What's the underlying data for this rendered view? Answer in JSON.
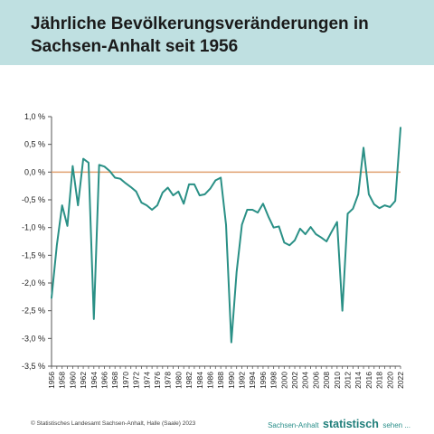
{
  "header": {
    "title": "Jährliche Bevölkerungsveränderungen in Sachsen-Anhalt seit 1956"
  },
  "footer": {
    "source": "© Statistisches Landesamt Sachsen-Anhalt, Halle (Saale) 2023",
    "brand_prefix": "Sachsen-Anhalt",
    "brand_main": "statistisch",
    "brand_suffix": "sehen ..."
  },
  "colors": {
    "header_bg": "#bfe0e1",
    "line": "#2a9086",
    "zero_line": "#e0a070",
    "axis": "#555555"
  },
  "chart_data": {
    "type": "line",
    "title": "Jährliche Bevölkerungsveränderungen in Sachsen-Anhalt seit 1956",
    "xlabel": "",
    "ylabel": "",
    "ylim": [
      -3.5,
      1.0
    ],
    "y_ticks": [
      1.0,
      0.5,
      0.0,
      -0.5,
      -1.0,
      -1.5,
      -2.0,
      -2.5,
      -3.0,
      -3.5
    ],
    "y_tick_labels": [
      "1,0 %",
      "0,5 %",
      "0,0 %",
      "-0,5 %",
      "-1,0 %",
      "-1,5 %",
      "-2,0 %",
      "-2,5 %",
      "-3,0 %",
      "-3,5 %"
    ],
    "x_tick_labels": [
      "1956",
      "1958",
      "1960",
      "1962",
      "1964",
      "1966",
      "1968",
      "1970",
      "1972",
      "1974",
      "1976",
      "1978",
      "1980",
      "1982",
      "1984",
      "1986",
      "1988",
      "1990",
      "1992",
      "1994",
      "1996",
      "1998",
      "2000",
      "2002",
      "2004",
      "2006",
      "2008",
      "2010",
      "2012",
      "2014",
      "2016",
      "2018",
      "2020",
      "2022"
    ],
    "reference_line": 0.0,
    "grid": false,
    "x": [
      1956,
      1957,
      1958,
      1959,
      1960,
      1961,
      1962,
      1963,
      1964,
      1965,
      1966,
      1967,
      1968,
      1969,
      1970,
      1971,
      1972,
      1973,
      1974,
      1975,
      1976,
      1977,
      1978,
      1979,
      1980,
      1981,
      1982,
      1983,
      1984,
      1985,
      1986,
      1987,
      1988,
      1989,
      1990,
      1991,
      1992,
      1993,
      1994,
      1995,
      1996,
      1997,
      1998,
      1999,
      2000,
      2001,
      2002,
      2003,
      2004,
      2005,
      2006,
      2007,
      2008,
      2009,
      2010,
      2011,
      2012,
      2013,
      2014,
      2015,
      2016,
      2017,
      2018,
      2019,
      2020,
      2021,
      2022
    ],
    "series": [
      {
        "values": [
          -2.27,
          -1.32,
          -0.6,
          -0.97,
          0.11,
          -0.6,
          0.24,
          0.17,
          -2.65,
          0.13,
          0.1,
          0.02,
          -0.1,
          -0.12,
          -0.2,
          -0.27,
          -0.35,
          -0.55,
          -0.6,
          -0.68,
          -0.6,
          -0.37,
          -0.28,
          -0.42,
          -0.35,
          -0.57,
          -0.22,
          -0.22,
          -0.42,
          -0.4,
          -0.3,
          -0.15,
          -0.1,
          -0.95,
          -3.07,
          -1.8,
          -0.95,
          -0.68,
          -0.68,
          -0.73,
          -0.57,
          -0.8,
          -1.0,
          -0.98,
          -1.27,
          -1.32,
          -1.23,
          -1.02,
          -1.12,
          -0.99,
          -1.12,
          -1.18,
          -1.25,
          -1.07,
          -0.9,
          -2.5,
          -0.75,
          -0.66,
          -0.4,
          0.44,
          -0.4,
          -0.58,
          -0.65,
          -0.6,
          -0.63,
          -0.52,
          0.8
        ]
      }
    ]
  }
}
